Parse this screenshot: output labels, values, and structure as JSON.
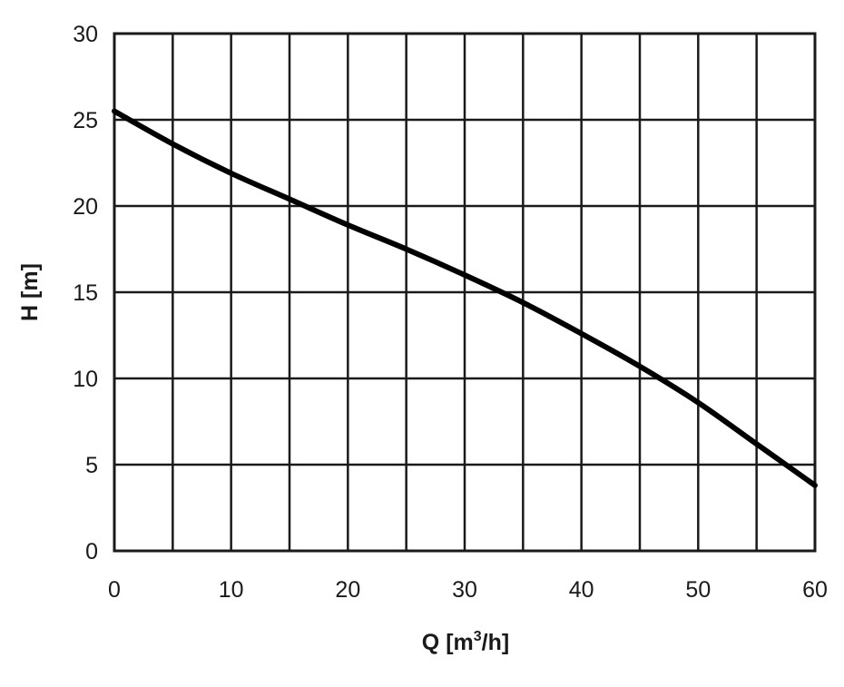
{
  "chart_data": {
    "type": "line",
    "title": "",
    "xlabel": "Q [m",
    "xlabel_sup": "3",
    "xlabel_tail": "/h]",
    "ylabel": "H [m]",
    "xlim": [
      0,
      60
    ],
    "ylim": [
      0,
      30
    ],
    "x_ticks": [
      0,
      10,
      20,
      30,
      40,
      50,
      60
    ],
    "y_ticks": [
      0,
      5,
      10,
      15,
      20,
      25,
      30
    ],
    "x_grid_step": 5,
    "y_grid_step": 5,
    "grid": true,
    "legend": "none",
    "line_color": "#000000",
    "series": [
      {
        "x": [
          0,
          5,
          10,
          15,
          20,
          25,
          30,
          35,
          40,
          45,
          50,
          55,
          60
        ],
        "y": [
          25.5,
          23.6,
          21.9,
          20.4,
          18.9,
          17.5,
          16.0,
          14.4,
          12.6,
          10.7,
          8.6,
          6.2,
          3.8
        ]
      }
    ]
  }
}
